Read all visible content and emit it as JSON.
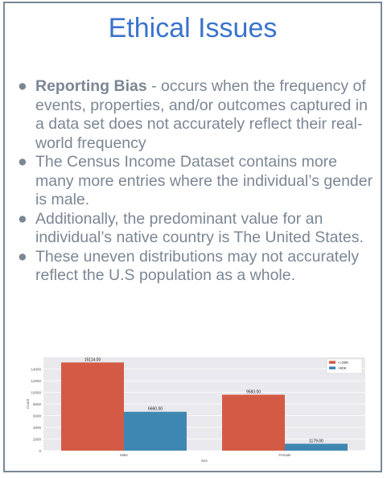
{
  "title": "Ethical Issues",
  "bullets": [
    {
      "bold": "Reporting Bias",
      "text": " - occurs when the frequency of events, properties, and/or outcomes captured in a data set does not accurately reflect their real-world frequency"
    },
    {
      "bold": "",
      "text": "The Census Income Dataset contains more many more entries where the individual’s gender is male."
    },
    {
      "bold": "",
      "text": "Additionally, the predominant value for an individual’s native country is The United States."
    },
    {
      "bold": "",
      "text": "These uneven distributions may not accurately reflect the U.S population as a whole."
    }
  ],
  "bullet_glyph": "●",
  "chart_data": {
    "type": "bar",
    "categories": [
      "Male",
      "Female"
    ],
    "series": [
      {
        "name": "<=50K",
        "values": [
          15114.0,
          9583.0
        ],
        "color": "#d35b45"
      },
      {
        "name": ">50K",
        "values": [
          6660.0,
          1179.0
        ],
        "color": "#3f87b3"
      }
    ],
    "data_labels": [
      [
        "15114.00",
        "6660.00"
      ],
      [
        "9583.00",
        "1179.00"
      ]
    ],
    "xlabel": "Sex",
    "ylabel": "Count",
    "ylim": [
      0,
      16000
    ],
    "yticks": [
      0,
      2000,
      4000,
      6000,
      8000,
      10000,
      12000,
      14000
    ],
    "grid": true,
    "legend": "top-right",
    "background": "#e9e9ee"
  }
}
